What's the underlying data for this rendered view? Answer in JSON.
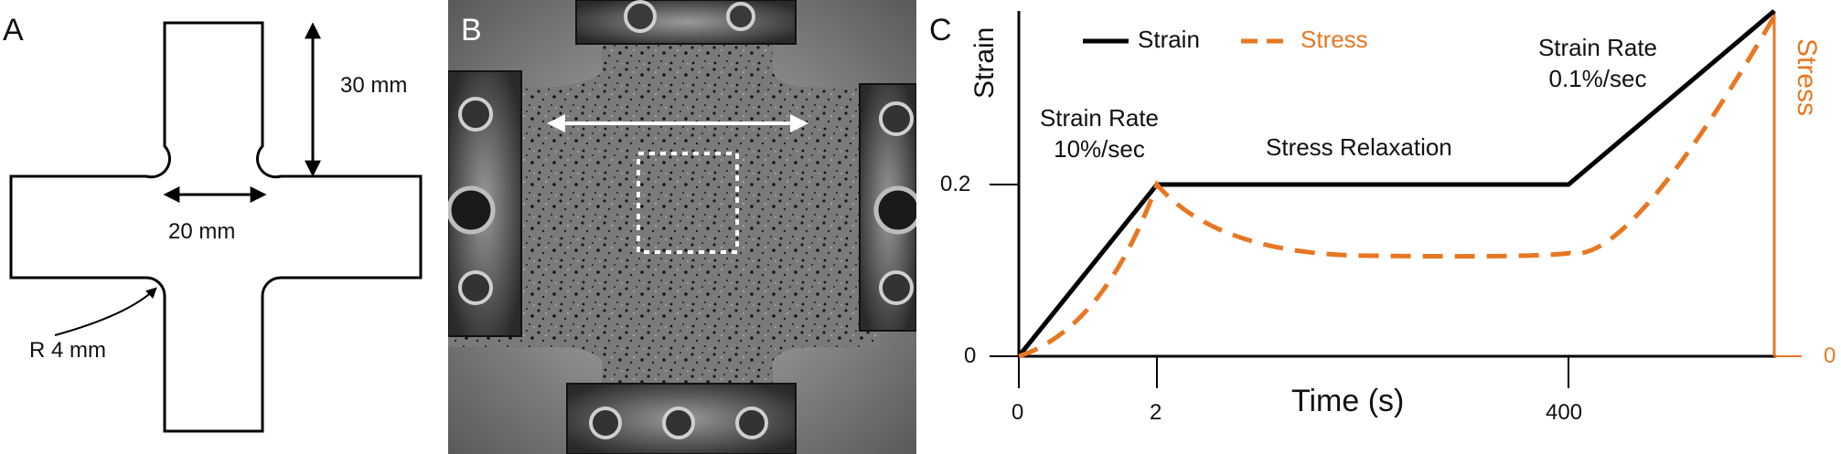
{
  "panels": {
    "a": {
      "letter": "A",
      "dim_length": "30 mm",
      "dim_width": "20 mm",
      "radius_label": "R 4 mm"
    },
    "b": {
      "letter": "B"
    },
    "c": {
      "letter": "C",
      "legend": {
        "strain": "Strain",
        "stress": "Stress"
      },
      "y_left_label": "Strain",
      "y_right_label": "Stress",
      "x_label": "Time (s)",
      "x_ticks": [
        "0",
        "2",
        "400"
      ],
      "y_left_ticks": [
        "0.2",
        "0"
      ],
      "y_right_ticks": [
        "0"
      ],
      "annotations": {
        "rate1_line1": "Strain Rate",
        "rate1_line2": "10%/sec",
        "relaxation": "Stress Relaxation",
        "rate2_line1": "Strain Rate",
        "rate2_line2": "0.1%/sec"
      },
      "colors": {
        "strain": "#000000",
        "stress": "#e87722"
      }
    }
  },
  "chart_data": {
    "type": "line",
    "xlabel": "Time (s)",
    "ylabel": "Strain",
    "y2label": "Stress",
    "x_ticks": [
      0,
      2,
      400
    ],
    "series": [
      {
        "name": "Strain",
        "style": "solid",
        "color": "#000000",
        "points": [
          [
            0,
            0
          ],
          [
            2,
            0.2
          ],
          [
            400,
            0.2
          ]
        ]
      },
      {
        "name": "Stress",
        "style": "dashed",
        "color": "#e87722",
        "points": [
          [
            0,
            0
          ],
          [
            2,
            0.2
          ],
          [
            400,
            0.12
          ]
        ]
      }
    ]
  }
}
